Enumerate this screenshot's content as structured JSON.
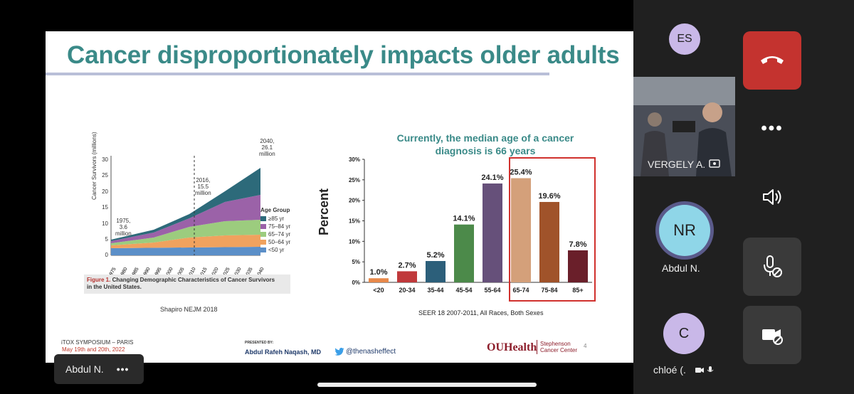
{
  "slide": {
    "title": "Cancer disproportionately impacts older adults",
    "left_figure": {
      "y_axis_label": "Cancer Survivors (millions)",
      "y_ticks": [
        "30",
        "25",
        "20",
        "15",
        "10",
        "5",
        "0"
      ],
      "x_ticks": [
        "1975",
        "1980",
        "1985",
        "1990",
        "1995",
        "2000",
        "2005",
        "2010",
        "2015",
        "2020",
        "2025",
        "2030",
        "2035",
        "2040"
      ],
      "annotations": [
        {
          "lines": [
            "2040,",
            "26.1",
            "million"
          ]
        },
        {
          "lines": [
            "2016,",
            "15.5",
            "million"
          ]
        },
        {
          "lines": [
            "1975,",
            "3.6",
            "million"
          ]
        }
      ],
      "legend_title": "Age Group",
      "legend": [
        {
          "label": "≥85 yr",
          "color": "#2d6a7a"
        },
        {
          "label": "75–84 yr",
          "color": "#9b62a8"
        },
        {
          "label": "65–74 yr",
          "color": "#9ccc7e"
        },
        {
          "label": "50–64 yr",
          "color": "#f0a25e"
        },
        {
          "label": "<50 yr",
          "color": "#5b8fc8"
        }
      ],
      "caption_bold": "Figure 1.",
      "caption_rest": "Changing Demographic Characteristics of Cancer Survivors",
      "caption_line2": "in the United States.",
      "source": "Shapiro NEJM 2018"
    },
    "bar_chart_title_line1": "Currently, the median age of a cancer",
    "bar_chart_title_line2": "diagnosis is 66 years",
    "bar_chart_source": "SEER 18 2007-2011, All Races, Both Sexes",
    "footer": {
      "symposium": "iTOX SYMPOSIUM – PARIS",
      "dates": "May 19th and 20th, 2022",
      "presented_by": "PRESENTED BY:",
      "presenter": "Abdul Rafeh Naqash, MD",
      "twitter": "@thenasheffect",
      "org_logo": "OUHealth",
      "org_name_line1": "Stephenson",
      "org_name_line2": "Cancer Center",
      "page_number": "4"
    }
  },
  "chart_data": {
    "type": "bar",
    "title": "Currently, the median age of a cancer diagnosis is 66 years",
    "xlabel": "",
    "ylabel": "Percent",
    "categories": [
      "<20",
      "20-34",
      "35-44",
      "45-54",
      "55-64",
      "65-74",
      "75-84",
      "85+"
    ],
    "values": [
      1.0,
      2.7,
      5.2,
      14.1,
      24.1,
      25.4,
      19.6,
      7.8
    ],
    "value_labels": [
      "1.0%",
      "2.7%",
      "5.2%",
      "14.1%",
      "24.1%",
      "25.4%",
      "19.6%",
      "7.8%"
    ],
    "bar_colors": [
      "#e8894a",
      "#c0393b",
      "#2c5f7a",
      "#4c8a4a",
      "#66507a",
      "#d4a07a",
      "#a0532a",
      "#6a1f2a"
    ],
    "ylim": [
      0,
      30
    ],
    "y_ticks": [
      "30%",
      "25%",
      "20%",
      "15%",
      "10%",
      "5%",
      "0%"
    ],
    "highlighted_categories": [
      "65-74",
      "75-84",
      "85+"
    ],
    "highlight_color": "#d0312d",
    "grid": false,
    "legend": "none"
  },
  "meeting": {
    "participants": [
      {
        "initials": "ES",
        "color": "#c9b8e8"
      },
      {
        "name": "VERGELY A."
      },
      {
        "initials": "NR",
        "name": "Abdul N.",
        "color": "#8fd6e8"
      },
      {
        "initials": "C",
        "name": "chloé (.",
        "color": "#c9b8e8"
      }
    ],
    "pinned_name": "Abdul N.",
    "more_label": "•••",
    "controls": {
      "hangup_color": "#c4332f",
      "more_label": "•••"
    }
  }
}
